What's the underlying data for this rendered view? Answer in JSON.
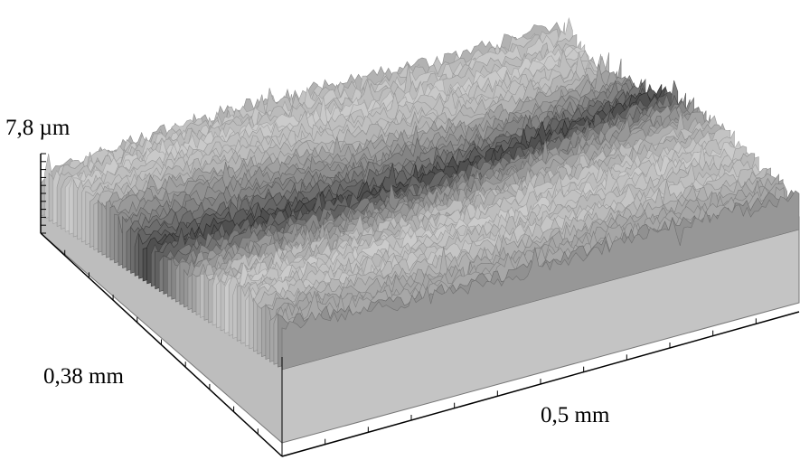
{
  "labels": {
    "height": "7,8 µm",
    "depth": "0,38 mm",
    "width": "0,5 mm"
  },
  "colors": {
    "background": "#ffffff",
    "wall": "#c2c2c2",
    "wall_edge": "#7a7a7a",
    "surface_dark": "#4a4a4a",
    "surface_light": "#e4e4e4",
    "axis": "#000000"
  }
}
